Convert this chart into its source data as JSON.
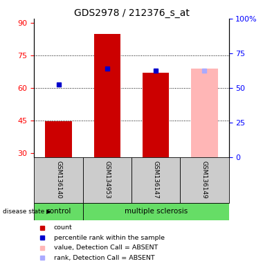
{
  "title": "GDS2978 / 212376_s_at",
  "samples": [
    "GSM136140",
    "GSM134953",
    "GSM136147",
    "GSM136149"
  ],
  "ylim_left": [
    28,
    92
  ],
  "yticks_left": [
    30,
    45,
    60,
    75,
    90
  ],
  "yticks_right": [
    0,
    25,
    50,
    75,
    100
  ],
  "ytick_labels_right": [
    "0",
    "25",
    "50",
    "75",
    "100%"
  ],
  "bar_data": {
    "GSM136140": {
      "value": 44.5,
      "rank": 61.5,
      "absent_value": null,
      "absent_rank": null
    },
    "GSM134953": {
      "value": 85.0,
      "rank": 69.0,
      "absent_value": null,
      "absent_rank": null
    },
    "GSM136147": {
      "value": 67.0,
      "rank": 68.0,
      "absent_value": null,
      "absent_rank": null
    },
    "GSM136149": {
      "value": null,
      "rank": null,
      "absent_value": 69.0,
      "absent_rank": 68.0
    }
  },
  "bar_bottom": 28,
  "bar_width": 0.55,
  "gridlines": [
    45,
    60,
    75
  ],
  "colors": {
    "count_present": "#cc0000",
    "rank_present": "#0000cc",
    "count_absent": "#ffb6b6",
    "rank_absent": "#aaaaff",
    "control_bg": "#66dd66",
    "ms_bg": "#66dd66",
    "sample_bg": "#cccccc",
    "plot_bg": "#ffffff"
  },
  "legend_items": [
    {
      "label": "count",
      "color": "#cc0000"
    },
    {
      "label": "percentile rank within the sample",
      "color": "#0000cc"
    },
    {
      "label": "value, Detection Call = ABSENT",
      "color": "#ffb6b6"
    },
    {
      "label": "rank, Detection Call = ABSENT",
      "color": "#aaaaff"
    }
  ],
  "control_samples": [
    0
  ],
  "ms_samples": [
    1,
    2,
    3
  ]
}
